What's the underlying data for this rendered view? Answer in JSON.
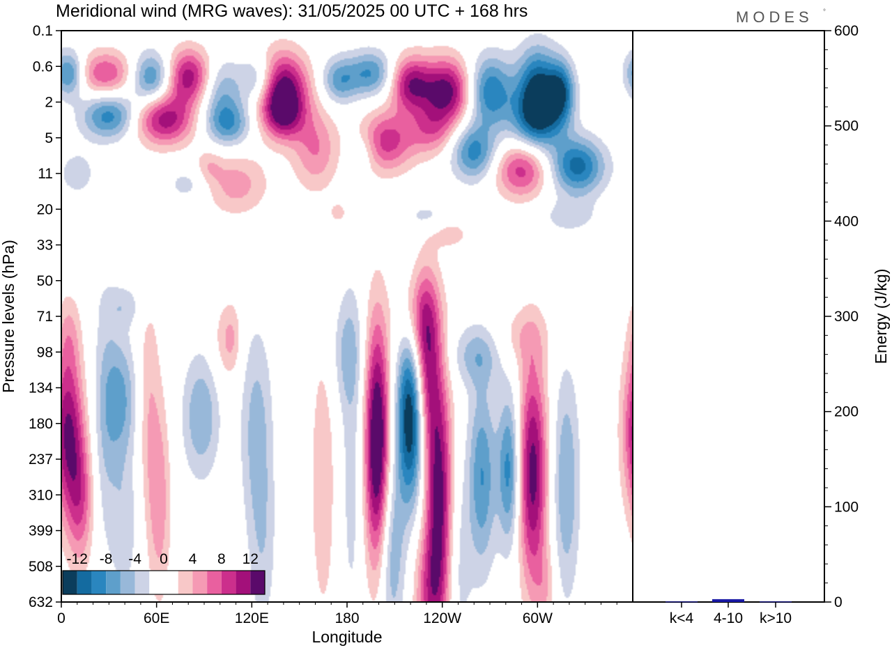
{
  "title": "Meridional wind (MRG waves):  31/05/2025  00 UTC  + 168 hrs",
  "logo": {
    "text": "MODES",
    "mark": "°"
  },
  "colors": {
    "neg": [
      "#0b3d5c",
      "#146ba0",
      "#2a86bf",
      "#5e9fcb",
      "#98b8d9",
      "#cdd3e6"
    ],
    "pos": [
      "#f8c8c8",
      "#f59ab4",
      "#e9609f",
      "#cc2f8c",
      "#a3107a",
      "#5a0a6a"
    ],
    "bar": "#1a1aa6"
  },
  "chart_data": [
    {
      "type": "heatmap",
      "title": "Meridional wind (MRG waves):  31/05/2025  00 UTC  + 168 hrs",
      "xlabel": "Longitude",
      "ylabel": "Pressure levels (hPa)",
      "x_ticks": [
        "0",
        "60E",
        "120E",
        "180",
        "120W",
        "60W"
      ],
      "y_ticks": [
        "0.1",
        "0.6",
        "2",
        "5",
        "11",
        "20",
        "33",
        "50",
        "71",
        "98",
        "134",
        "180",
        "237",
        "310",
        "399",
        "508",
        "632"
      ],
      "colorbar": {
        "labels": [
          "-12",
          "-8",
          "-4",
          "0",
          "4",
          "8",
          "12"
        ]
      },
      "features": [
        {
          "lon": 5,
          "lev": 1.2,
          "v": -10,
          "dlon": 7,
          "dlev": 0.45
        },
        {
          "lon": 28,
          "lev": 1.2,
          "v": 8,
          "dlon": 15,
          "dlev": 0.45
        },
        {
          "lon": 57,
          "lev": 1.3,
          "v": -10,
          "dlon": 10,
          "dlev": 0.5
        },
        {
          "lon": 80,
          "lev": 1.3,
          "v": 12,
          "dlon": 11,
          "dlev": 0.55
        },
        {
          "lon": 100,
          "lev": 1.6,
          "v": -6,
          "dlon": 10,
          "dlev": 0.6
        },
        {
          "lon": 125,
          "lev": 1.4,
          "v": -8,
          "dlon": 8,
          "dlev": 0.5
        },
        {
          "lon": 138,
          "lev": 1.6,
          "v": 14,
          "dlon": 12,
          "dlev": 0.7
        },
        {
          "lon": 175,
          "lev": 1.4,
          "v": -7,
          "dlon": 8,
          "dlev": 0.45
        },
        {
          "lon": 195,
          "lev": 1.2,
          "v": -8,
          "dlon": 10,
          "dlev": 0.45
        },
        {
          "lon": 220,
          "lev": 1.5,
          "v": 11,
          "dlon": 9,
          "dlev": 0.55
        },
        {
          "lon": 243,
          "lev": 1.7,
          "v": 13,
          "dlon": 11,
          "dlev": 0.65
        },
        {
          "lon": 270,
          "lev": 1.7,
          "v": -10,
          "dlon": 10,
          "dlev": 0.7
        },
        {
          "lon": 300,
          "lev": 1.6,
          "v": -12,
          "dlon": 9,
          "dlev": 0.8
        },
        {
          "lon": 315,
          "lev": 1.7,
          "v": -10,
          "dlon": 6,
          "dlev": 0.6
        },
        {
          "lon": 30,
          "lev": 2.4,
          "v": -9,
          "dlon": 12,
          "dlev": 0.45
        },
        {
          "lon": 65,
          "lev": 2.5,
          "v": 11,
          "dlon": 13,
          "dlev": 0.5
        },
        {
          "lon": 105,
          "lev": 2.6,
          "v": -8,
          "dlon": 10,
          "dlev": 0.45
        },
        {
          "lon": 140,
          "lev": 2.4,
          "v": 8,
          "dlon": 9,
          "dlev": 0.5
        },
        {
          "lon": 160,
          "lev": 3.3,
          "v": 6,
          "dlon": 10,
          "dlev": 0.8
        },
        {
          "lon": 205,
          "lev": 3.1,
          "v": 9,
          "dlon": 12,
          "dlev": 0.6
        },
        {
          "lon": 233,
          "lev": 2.8,
          "v": 6,
          "dlon": 10,
          "dlev": 0.5
        },
        {
          "lon": 260,
          "lev": 3.4,
          "v": -9,
          "dlon": 10,
          "dlev": 0.55
        },
        {
          "lon": 290,
          "lev": 3.9,
          "v": 9,
          "dlon": 12,
          "dlev": 0.55
        },
        {
          "lon": 325,
          "lev": 3.8,
          "v": -11,
          "dlon": 12,
          "dlev": 0.55
        },
        {
          "lon": 300,
          "lev": 2.5,
          "v": -9,
          "dlon": 12,
          "dlev": 0.6
        },
        {
          "lon": 110,
          "lev": 4.3,
          "v": 5,
          "dlon": 14,
          "dlev": 0.6
        },
        {
          "lon": 80,
          "lev": 4.3,
          "v": -3,
          "dlon": 10,
          "dlev": 0.35
        },
        {
          "lon": 93,
          "lev": 3.8,
          "v": 3,
          "dlon": 6,
          "dlev": 0.35
        },
        {
          "lon": 10,
          "lev": 4.0,
          "v": -3,
          "dlon": 9,
          "dlev": 0.5
        },
        {
          "lon": 190,
          "lev": 3.4,
          "v": -3,
          "dlon": 6,
          "dlev": 0.4
        },
        {
          "lon": 230,
          "lev": 5.2,
          "v": -3,
          "dlon": 9,
          "dlev": 0.3
        },
        {
          "lon": 320,
          "lev": 5.2,
          "v": -3,
          "dlon": 13,
          "dlev": 0.35
        },
        {
          "lon": 175,
          "lev": 5.1,
          "v": 2.5,
          "dlon": 5,
          "dlev": 0.25
        },
        {
          "lon": 245,
          "lev": 5.7,
          "v": 3,
          "dlon": 9,
          "dlev": 0.3
        },
        {
          "lon": 40,
          "lev": 7.7,
          "v": -3,
          "dlon": 8,
          "dlev": 0.4
        },
        {
          "lon": 5,
          "lev": 8.5,
          "v": 3,
          "dlon": 5,
          "dlev": 0.8
        },
        {
          "lon": 4,
          "lev": 11.2,
          "v": 12,
          "dlon": 7,
          "dlev": 1.6
        },
        {
          "lon": 12,
          "lev": 13.2,
          "v": 7,
          "dlon": 6,
          "dlev": 1.3
        },
        {
          "lon": 28,
          "lev": 10.8,
          "v": -4,
          "dlon": 6,
          "dlev": 2.5
        },
        {
          "lon": 38,
          "lev": 10.3,
          "v": -6,
          "dlon": 7,
          "dlev": 1.2
        },
        {
          "lon": 40,
          "lev": 13.8,
          "v": -3.5,
          "dlon": 6,
          "dlev": 1.4
        },
        {
          "lon": 55,
          "lev": 10.5,
          "v": 3.5,
          "dlon": 5,
          "dlev": 2.4
        },
        {
          "lon": 62,
          "lev": 13.2,
          "v": 5,
          "dlon": 5,
          "dlev": 2.0
        },
        {
          "lon": 88,
          "lev": 10.8,
          "v": -6,
          "dlon": 8,
          "dlev": 1.2
        },
        {
          "lon": 103,
          "lev": 8.7,
          "v": 3,
          "dlon": 6,
          "dlev": 0.8
        },
        {
          "lon": 123,
          "lev": 11.2,
          "v": -5,
          "dlon": 7,
          "dlev": 2.0
        },
        {
          "lon": 127,
          "lev": 14.6,
          "v": -3,
          "dlon": 6,
          "dlev": 1.8
        },
        {
          "lon": 165,
          "lev": 12.6,
          "v": 3.5,
          "dlon": 6,
          "dlev": 3.0
        },
        {
          "lon": 183,
          "lev": 12.2,
          "v": -3,
          "dlon": 5,
          "dlev": 3.4
        },
        {
          "lon": 180,
          "lev": 9.0,
          "v": -4,
          "dlon": 7,
          "dlev": 1.1
        },
        {
          "lon": 199,
          "lev": 11.6,
          "v": 16,
          "dlon": 5.5,
          "dlev": 2.4
        },
        {
          "lon": 220,
          "lev": 10.8,
          "v": -15,
          "dlon": 6,
          "dlev": 1.7
        },
        {
          "lon": 208,
          "lev": 14.6,
          "v": -6,
          "dlon": 6,
          "dlev": 1.8
        },
        {
          "lon": 230,
          "lev": 9.3,
          "v": 10,
          "dlon": 6,
          "dlev": 1.7
        },
        {
          "lon": 238,
          "lev": 13.0,
          "v": 13,
          "dlon": 6,
          "dlev": 2.4
        },
        {
          "lon": 232,
          "lev": 15.8,
          "v": 7,
          "dlon": 7,
          "dlev": 1.3
        },
        {
          "lon": 225,
          "lev": 8.0,
          "v": 5,
          "dlon": 9,
          "dlev": 0.9
        },
        {
          "lon": 265,
          "lev": 12.5,
          "v": -8,
          "dlon": 6,
          "dlev": 1.8
        },
        {
          "lon": 282,
          "lev": 12.3,
          "v": -9,
          "dlon": 5,
          "dlev": 1.5
        },
        {
          "lon": 262,
          "lev": 9.1,
          "v": -5,
          "dlon": 11,
          "dlev": 0.6
        },
        {
          "lon": 250,
          "lev": 15.0,
          "v": -3,
          "dlon": 6,
          "dlev": 2.0
        },
        {
          "lon": 297,
          "lev": 12.4,
          "v": 13,
          "dlon": 6.5,
          "dlev": 2.2
        },
        {
          "lon": 290,
          "lev": 8.6,
          "v": 3,
          "dlon": 12,
          "dlev": 0.6
        },
        {
          "lon": 318,
          "lev": 12.7,
          "v": -6,
          "dlon": 6,
          "dlev": 2.2
        },
        {
          "lon": 305,
          "lev": 15.6,
          "v": 3,
          "dlon": 5,
          "dlev": 0.8
        },
        {
          "lon": 108,
          "lev": 8.6,
          "v": 2.5,
          "dlon": 4,
          "dlev": 0.7
        }
      ]
    },
    {
      "type": "bar",
      "categories": [
        "k<4",
        "4-10",
        "k>10"
      ],
      "values": [
        0.5,
        3,
        0.5
      ],
      "ylabel": "Energy (J/kg)",
      "ylim": [
        0,
        600
      ],
      "y_ticks": [
        "0",
        "100",
        "200",
        "300",
        "400",
        "500",
        "600"
      ]
    }
  ]
}
